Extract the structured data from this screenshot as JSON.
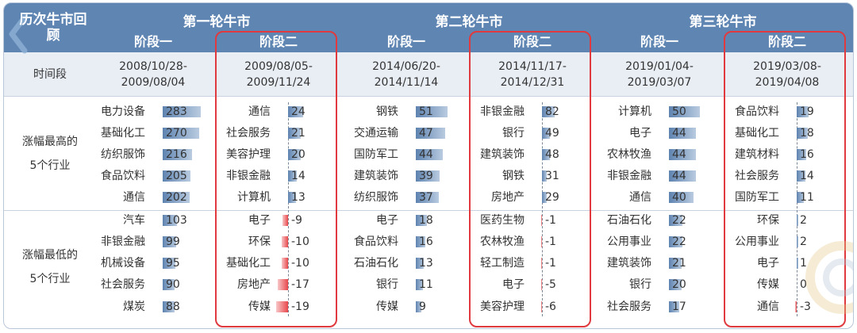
{
  "colors": {
    "header": "#5f85b3",
    "time_row": "#e9eef5",
    "positive_bar": "#5e83b0",
    "negative_bar": "#e8484c",
    "highlight": "#e0393e"
  },
  "header": {
    "history_label": "历次牛市回顾"
  },
  "time_row_label": "时间段",
  "top_label": "涨幅最高的5个行业",
  "bottom_label": "涨幅最低的5个行业",
  "markets": [
    {
      "title": "第一轮牛市",
      "stages": [
        {
          "name": "阶段一",
          "period": [
            "2008/10/28-",
            "2009/08/04"
          ],
          "highlighted": false,
          "top": [
            {
              "industry": "电力设备",
              "value": 283
            },
            {
              "industry": "基础化工",
              "value": 270
            },
            {
              "industry": "纺织服饰",
              "value": 216
            },
            {
              "industry": "食品饮料",
              "value": 205
            },
            {
              "industry": "通信",
              "value": 202
            }
          ],
          "bottom": [
            {
              "industry": "汽车",
              "value": 103
            },
            {
              "industry": "非银金融",
              "value": 99
            },
            {
              "industry": "机械设备",
              "value": 95
            },
            {
              "industry": "社会服务",
              "value": 90
            },
            {
              "industry": "煤炭",
              "value": 88
            }
          ]
        },
        {
          "name": "阶段二",
          "period": [
            "2009/08/05-",
            "2009/11/24"
          ],
          "highlighted": true,
          "top": [
            {
              "industry": "通信",
              "value": 24
            },
            {
              "industry": "社会服务",
              "value": 21
            },
            {
              "industry": "美容护理",
              "value": 20
            },
            {
              "industry": "非银金融",
              "value": 14
            },
            {
              "industry": "计算机",
              "value": 13
            }
          ],
          "bottom": [
            {
              "industry": "电子",
              "value": -9
            },
            {
              "industry": "环保",
              "value": -10
            },
            {
              "industry": "基础化工",
              "value": -10
            },
            {
              "industry": "房地产",
              "value": -17
            },
            {
              "industry": "传媒",
              "value": -19
            }
          ]
        }
      ]
    },
    {
      "title": "第二轮牛市",
      "stages": [
        {
          "name": "阶段一",
          "period": [
            "2014/06/20-",
            "2014/11/14"
          ],
          "highlighted": false,
          "top": [
            {
              "industry": "钢铁",
              "value": 51
            },
            {
              "industry": "交通运输",
              "value": 47
            },
            {
              "industry": "国防军工",
              "value": 44
            },
            {
              "industry": "建筑装饰",
              "value": 39
            },
            {
              "industry": "纺织服饰",
              "value": 37
            }
          ],
          "bottom": [
            {
              "industry": "电子",
              "value": 18
            },
            {
              "industry": "食品饮料",
              "value": 16
            },
            {
              "industry": "石油石化",
              "value": 13
            },
            {
              "industry": "银行",
              "value": 11
            },
            {
              "industry": "传媒",
              "value": 9
            }
          ]
        },
        {
          "name": "阶段二",
          "period": [
            "2014/11/17-",
            "2014/12/31"
          ],
          "highlighted": true,
          "top": [
            {
              "industry": "非银金融",
              "value": 82
            },
            {
              "industry": "银行",
              "value": 49
            },
            {
              "industry": "建筑装饰",
              "value": 48
            },
            {
              "industry": "钢铁",
              "value": 31
            },
            {
              "industry": "房地产",
              "value": 29
            }
          ],
          "bottom": [
            {
              "industry": "医药生物",
              "value": -1
            },
            {
              "industry": "农林牧渔",
              "value": -1
            },
            {
              "industry": "轻工制造",
              "value": -1
            },
            {
              "industry": "电子",
              "value": -5
            },
            {
              "industry": "美容护理",
              "value": -6
            }
          ]
        }
      ]
    },
    {
      "title": "第三轮牛市",
      "stages": [
        {
          "name": "阶段一",
          "period": [
            "2019/01/04-",
            "2019/03/07"
          ],
          "highlighted": false,
          "top": [
            {
              "industry": "计算机",
              "value": 50
            },
            {
              "industry": "电子",
              "value": 44
            },
            {
              "industry": "农林牧渔",
              "value": 44
            },
            {
              "industry": "非银金融",
              "value": 44
            },
            {
              "industry": "通信",
              "value": 40
            }
          ],
          "bottom": [
            {
              "industry": "石油石化",
              "value": 22
            },
            {
              "industry": "公用事业",
              "value": 22
            },
            {
              "industry": "建筑装饰",
              "value": 21
            },
            {
              "industry": "银行",
              "value": 20
            },
            {
              "industry": "社会服务",
              "value": 17
            }
          ]
        },
        {
          "name": "阶段二",
          "period": [
            "2019/03/08-",
            "2019/04/08"
          ],
          "highlighted": true,
          "top": [
            {
              "industry": "食品饮料",
              "value": 19
            },
            {
              "industry": "基础化工",
              "value": 18
            },
            {
              "industry": "建筑材料",
              "value": 16
            },
            {
              "industry": "社会服务",
              "value": 14
            },
            {
              "industry": "国防军工",
              "value": 11
            }
          ],
          "bottom": [
            {
              "industry": "环保",
              "value": 2
            },
            {
              "industry": "公用事业",
              "value": 2
            },
            {
              "industry": "电子",
              "value": 1
            },
            {
              "industry": "传媒",
              "value": 0
            },
            {
              "industry": "通信",
              "value": -3
            }
          ]
        }
      ]
    }
  ],
  "chart_data": {
    "type": "bar",
    "markets": [
      "第一轮牛市",
      "第二轮牛市",
      "第三轮牛市"
    ],
    "stages": [
      "阶段一",
      "阶段二"
    ],
    "groups": [
      "涨幅最高的5个行业",
      "涨幅最低的5个行业"
    ],
    "series": [
      {
        "market": "第一轮牛市",
        "stage": "阶段一",
        "categories": [
          "电力设备",
          "基础化工",
          "纺织服饰",
          "食品饮料",
          "通信",
          "汽车",
          "非银金融",
          "机械设备",
          "社会服务",
          "煤炭"
        ],
        "values": [
          283,
          270,
          216,
          205,
          202,
          103,
          99,
          95,
          90,
          88
        ]
      },
      {
        "market": "第一轮牛市",
        "stage": "阶段二",
        "categories": [
          "通信",
          "社会服务",
          "美容护理",
          "非银金融",
          "计算机",
          "电子",
          "环保",
          "基础化工",
          "房地产",
          "传媒"
        ],
        "values": [
          24,
          21,
          20,
          14,
          13,
          -9,
          -10,
          -10,
          -17,
          -19
        ]
      },
      {
        "market": "第二轮牛市",
        "stage": "阶段一",
        "categories": [
          "钢铁",
          "交通运输",
          "国防军工",
          "建筑装饰",
          "纺织服饰",
          "电子",
          "食品饮料",
          "石油石化",
          "银行",
          "传媒"
        ],
        "values": [
          51,
          47,
          44,
          39,
          37,
          18,
          16,
          13,
          11,
          9
        ]
      },
      {
        "market": "第二轮牛市",
        "stage": "阶段二",
        "categories": [
          "非银金融",
          "银行",
          "建筑装饰",
          "钢铁",
          "房地产",
          "医药生物",
          "农林牧渔",
          "轻工制造",
          "电子",
          "美容护理"
        ],
        "values": [
          82,
          49,
          48,
          31,
          29,
          -1,
          -1,
          -1,
          -5,
          -6
        ]
      },
      {
        "market": "第三轮牛市",
        "stage": "阶段一",
        "categories": [
          "计算机",
          "电子",
          "农林牧渔",
          "非银金融",
          "通信",
          "石油石化",
          "公用事业",
          "建筑装饰",
          "银行",
          "社会服务"
        ],
        "values": [
          50,
          44,
          44,
          44,
          40,
          22,
          22,
          21,
          20,
          17
        ]
      },
      {
        "market": "第三轮牛市",
        "stage": "阶段二",
        "categories": [
          "食品饮料",
          "基础化工",
          "建筑材料",
          "社会服务",
          "国防军工",
          "环保",
          "公用事业",
          "电子",
          "传媒",
          "通信"
        ],
        "values": [
          19,
          18,
          16,
          14,
          11,
          2,
          2,
          1,
          0,
          -3
        ]
      }
    ]
  }
}
